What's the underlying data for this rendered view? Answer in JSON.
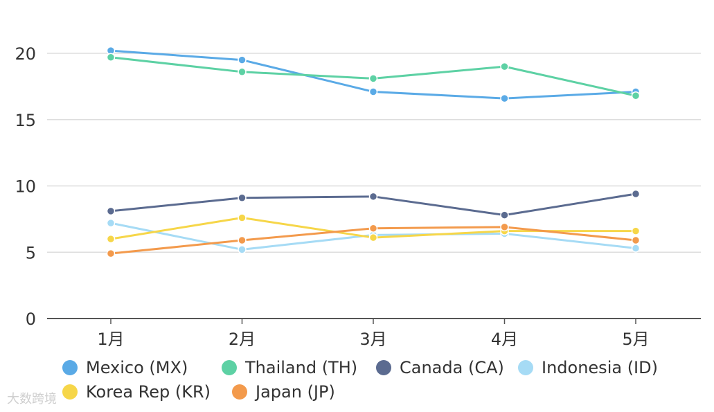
{
  "chart_data": {
    "type": "line",
    "categories": [
      "1月",
      "2月",
      "3月",
      "4月",
      "5月"
    ],
    "ylim": [
      0,
      20
    ],
    "yticks": [
      0,
      5,
      10,
      15,
      20
    ],
    "grid": true,
    "legend_position": "bottom",
    "series": [
      {
        "name": "Mexico (MX)",
        "color": "#5aaae6",
        "values": [
          20.2,
          19.5,
          17.1,
          16.6,
          17.1
        ]
      },
      {
        "name": "Thailand (TH)",
        "color": "#5dd1a4",
        "values": [
          19.7,
          18.6,
          18.1,
          19.0,
          16.8
        ]
      },
      {
        "name": "Canada (CA)",
        "color": "#5b6b90",
        "values": [
          8.1,
          9.1,
          9.2,
          7.8,
          9.4
        ]
      },
      {
        "name": "Indonesia (ID)",
        "color": "#a6dbf5",
        "values": [
          7.2,
          5.2,
          6.3,
          6.4,
          5.3
        ]
      },
      {
        "name": "Korea Rep (KR)",
        "color": "#f6d649",
        "values": [
          6.0,
          7.6,
          6.1,
          6.6,
          6.6
        ]
      },
      {
        "name": "Japan (JP)",
        "color": "#f39a4c",
        "values": [
          4.9,
          5.9,
          6.8,
          6.9,
          5.9
        ]
      }
    ]
  },
  "watermark": "大数跨境"
}
